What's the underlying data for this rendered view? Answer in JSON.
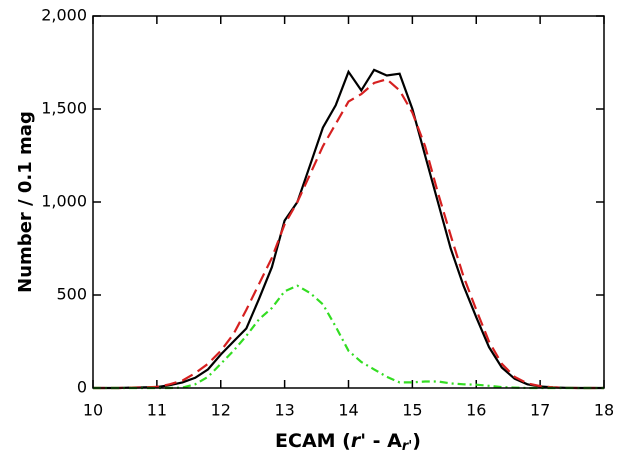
{
  "chart_data": {
    "type": "line",
    "xlabel": [
      "ECAM (",
      "r'",
      " - A",
      "r'",
      ")"
    ],
    "ylabel": "Number / 0.1 mag",
    "x": [
      10,
      10.2,
      10.4,
      10.6,
      10.8,
      11,
      11.2,
      11.4,
      11.6,
      11.8,
      12,
      12.2,
      12.4,
      12.6,
      12.8,
      13,
      13.2,
      13.4,
      13.6,
      13.8,
      14,
      14.2,
      14.4,
      14.6,
      14.8,
      15,
      15.2,
      15.4,
      15.6,
      15.8,
      16,
      16.2,
      16.4,
      16.6,
      16.8,
      17,
      17.2,
      17.4,
      17.6,
      17.8,
      18
    ],
    "series": [
      {
        "color": "#000000",
        "dash": "",
        "values": [
          0,
          0,
          0,
          2,
          3,
          5,
          15,
          30,
          55,
          100,
          180,
          250,
          320,
          480,
          650,
          900,
          1000,
          1200,
          1400,
          1520,
          1700,
          1600,
          1710,
          1680,
          1690,
          1500,
          1250,
          1000,
          750,
          550,
          380,
          220,
          110,
          50,
          20,
          8,
          3,
          1,
          0,
          0,
          0
        ]
      },
      {
        "color": "#d62020",
        "dash": "12 6",
        "values": [
          0,
          0,
          0,
          2,
          3,
          6,
          20,
          40,
          80,
          130,
          200,
          290,
          420,
          560,
          700,
          880,
          1000,
          1150,
          1300,
          1420,
          1540,
          1580,
          1640,
          1660,
          1600,
          1480,
          1300,
          1050,
          820,
          600,
          420,
          250,
          130,
          60,
          25,
          10,
          4,
          1,
          0,
          0,
          0
        ]
      },
      {
        "color": "#33dd22",
        "dash": "8 4 2 4",
        "values": [
          0,
          0,
          0,
          0,
          0,
          0,
          0,
          2,
          20,
          60,
          130,
          200,
          280,
          370,
          430,
          520,
          550,
          510,
          450,
          330,
          200,
          140,
          100,
          60,
          30,
          30,
          35,
          35,
          25,
          20,
          18,
          12,
          5,
          2,
          0,
          0,
          0,
          0,
          0,
          0,
          0
        ]
      }
    ],
    "xlim": [
      10,
      18
    ],
    "xticks": [
      10,
      11,
      12,
      13,
      14,
      15,
      16,
      17,
      18
    ],
    "ylim": [
      0,
      2000
    ],
    "yticks": [
      0,
      500,
      {
        "value": 1000,
        "label": "1,000"
      },
      {
        "value": 1500,
        "label": "1,500"
      },
      {
        "value": 2000,
        "label": "2,000"
      }
    ]
  }
}
